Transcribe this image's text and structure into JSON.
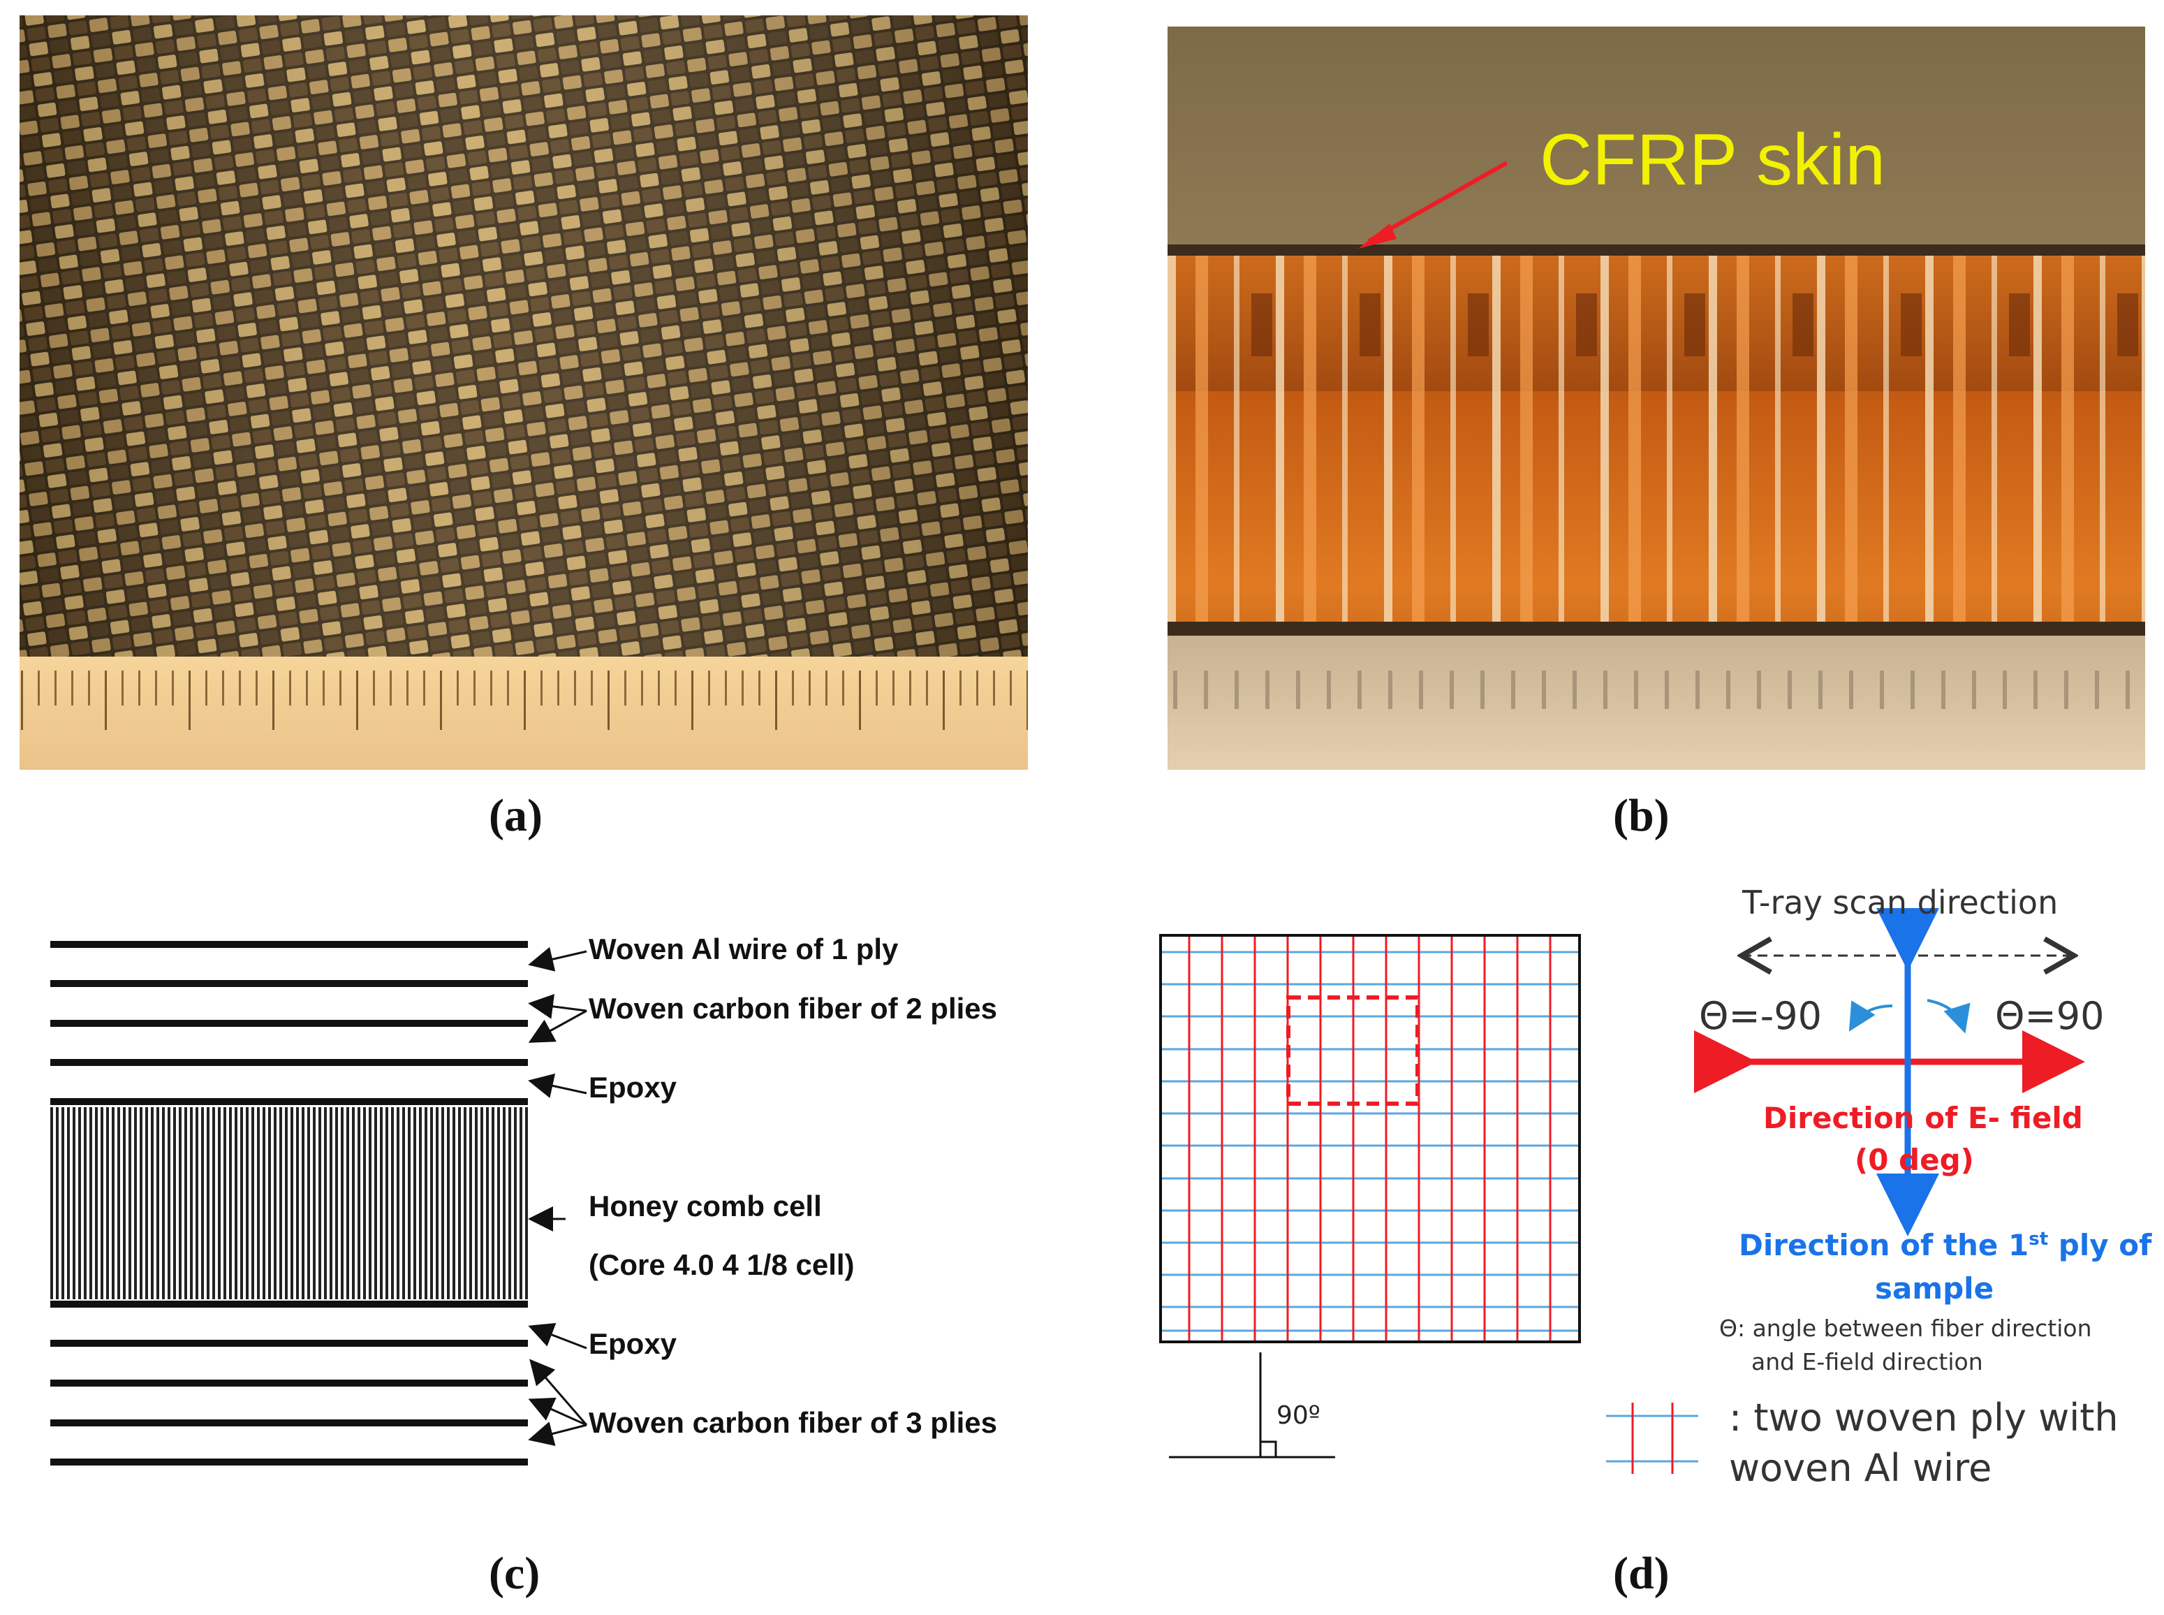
{
  "panels": {
    "a": {
      "label": "(a)"
    },
    "b": {
      "label": "(b)",
      "callout": "CFRP skin"
    },
    "c": {
      "label": "(c)",
      "annotations": {
        "al_wire": "Woven Al wire of 1 ply",
        "carbon_2": "Woven carbon fiber of 2 plies",
        "epoxy_top": "Epoxy",
        "honeycomb": "Honey comb cell",
        "core": "(Core 4.0 4 1/8 cell)",
        "epoxy_bottom": "Epoxy",
        "carbon_3": "Woven carbon fiber of 3 plies"
      }
    },
    "d": {
      "label": "(d)",
      "angle": "90º",
      "scan_direction": "T-ray scan direction",
      "theta_neg": "Θ=-90",
      "theta_pos": "Θ=90",
      "efield_line1": "Direction of E- field",
      "efield_line2": "(0 deg)",
      "ply_pre": "Direction of the 1",
      "ply_sup": "st",
      "ply_post": " ply of",
      "ply_line2": "sample",
      "theta_def_line1": "Θ: angle between fiber direction",
      "theta_def_line2": "and E-field direction",
      "legend_line1": ": two woven ply with",
      "legend_line2": "woven Al wire"
    }
  },
  "colors": {
    "red": "#ee1c25",
    "blue": "#1a73e8",
    "grid_blue": "#5aa7e0",
    "callout_yellow": "#f2f200"
  }
}
